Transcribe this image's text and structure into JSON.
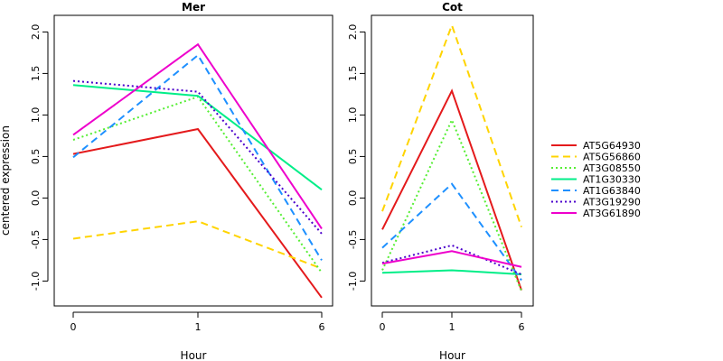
{
  "chart_data": {
    "type": "line",
    "ylabel": "centered expression",
    "xlabel": "Hour",
    "x_ticks": [
      "0",
      "1",
      "6"
    ],
    "ylim": [
      -1.3,
      2.2
    ],
    "y_ticks": [
      "-1.0",
      "-0.5",
      "0.0",
      "0.5",
      "1.0",
      "1.5",
      "2.0"
    ],
    "legend": {
      "placement": "right"
    },
    "series_styles": [
      {
        "name": "AT5G64930",
        "color": "#e41a1c",
        "dash": "solid"
      },
      {
        "name": "AT5G56860",
        "color": "#ffd400",
        "dash": "dashed"
      },
      {
        "name": "AT3G08550",
        "color": "#55ee33",
        "dash": "dotted"
      },
      {
        "name": "AT1G30330",
        "color": "#00ee88",
        "dash": "solid"
      },
      {
        "name": "AT1G63840",
        "color": "#1e90ff",
        "dash": "dashed"
      },
      {
        "name": "AT3G19290",
        "color": "#4b00cc",
        "dash": "dotted"
      },
      {
        "name": "AT3G61890",
        "color": "#ee00cc",
        "dash": "solid"
      }
    ],
    "panels": [
      {
        "title": "Mer",
        "series": [
          {
            "name": "AT5G64930",
            "values": [
              0.53,
              0.83,
              -1.2
            ]
          },
          {
            "name": "AT5G56860",
            "values": [
              -0.49,
              -0.28,
              -0.85
            ]
          },
          {
            "name": "AT3G08550",
            "values": [
              0.7,
              1.22,
              -0.9
            ]
          },
          {
            "name": "AT1G30330",
            "values": [
              1.36,
              1.23,
              0.1
            ]
          },
          {
            "name": "AT1G63840",
            "values": [
              0.49,
              1.72,
              -0.75
            ]
          },
          {
            "name": "AT3G19290",
            "values": [
              1.41,
              1.28,
              -0.43
            ]
          },
          {
            "name": "AT3G61890",
            "values": [
              0.76,
              1.85,
              -0.37
            ]
          }
        ]
      },
      {
        "title": "Cot",
        "series": [
          {
            "name": "AT5G64930",
            "values": [
              -0.38,
              1.29,
              -1.11
            ]
          },
          {
            "name": "AT5G56860",
            "values": [
              -0.16,
              2.08,
              -0.35
            ]
          },
          {
            "name": "AT3G08550",
            "values": [
              -0.87,
              0.94,
              -1.12
            ]
          },
          {
            "name": "AT1G30330",
            "values": [
              -0.9,
              -0.87,
              -0.92
            ]
          },
          {
            "name": "AT1G63840",
            "values": [
              -0.6,
              0.17,
              -0.99
            ]
          },
          {
            "name": "AT3G19290",
            "values": [
              -0.78,
              -0.57,
              -0.92
            ]
          },
          {
            "name": "AT3G61890",
            "values": [
              -0.79,
              -0.64,
              -0.83
            ]
          }
        ]
      }
    ]
  }
}
